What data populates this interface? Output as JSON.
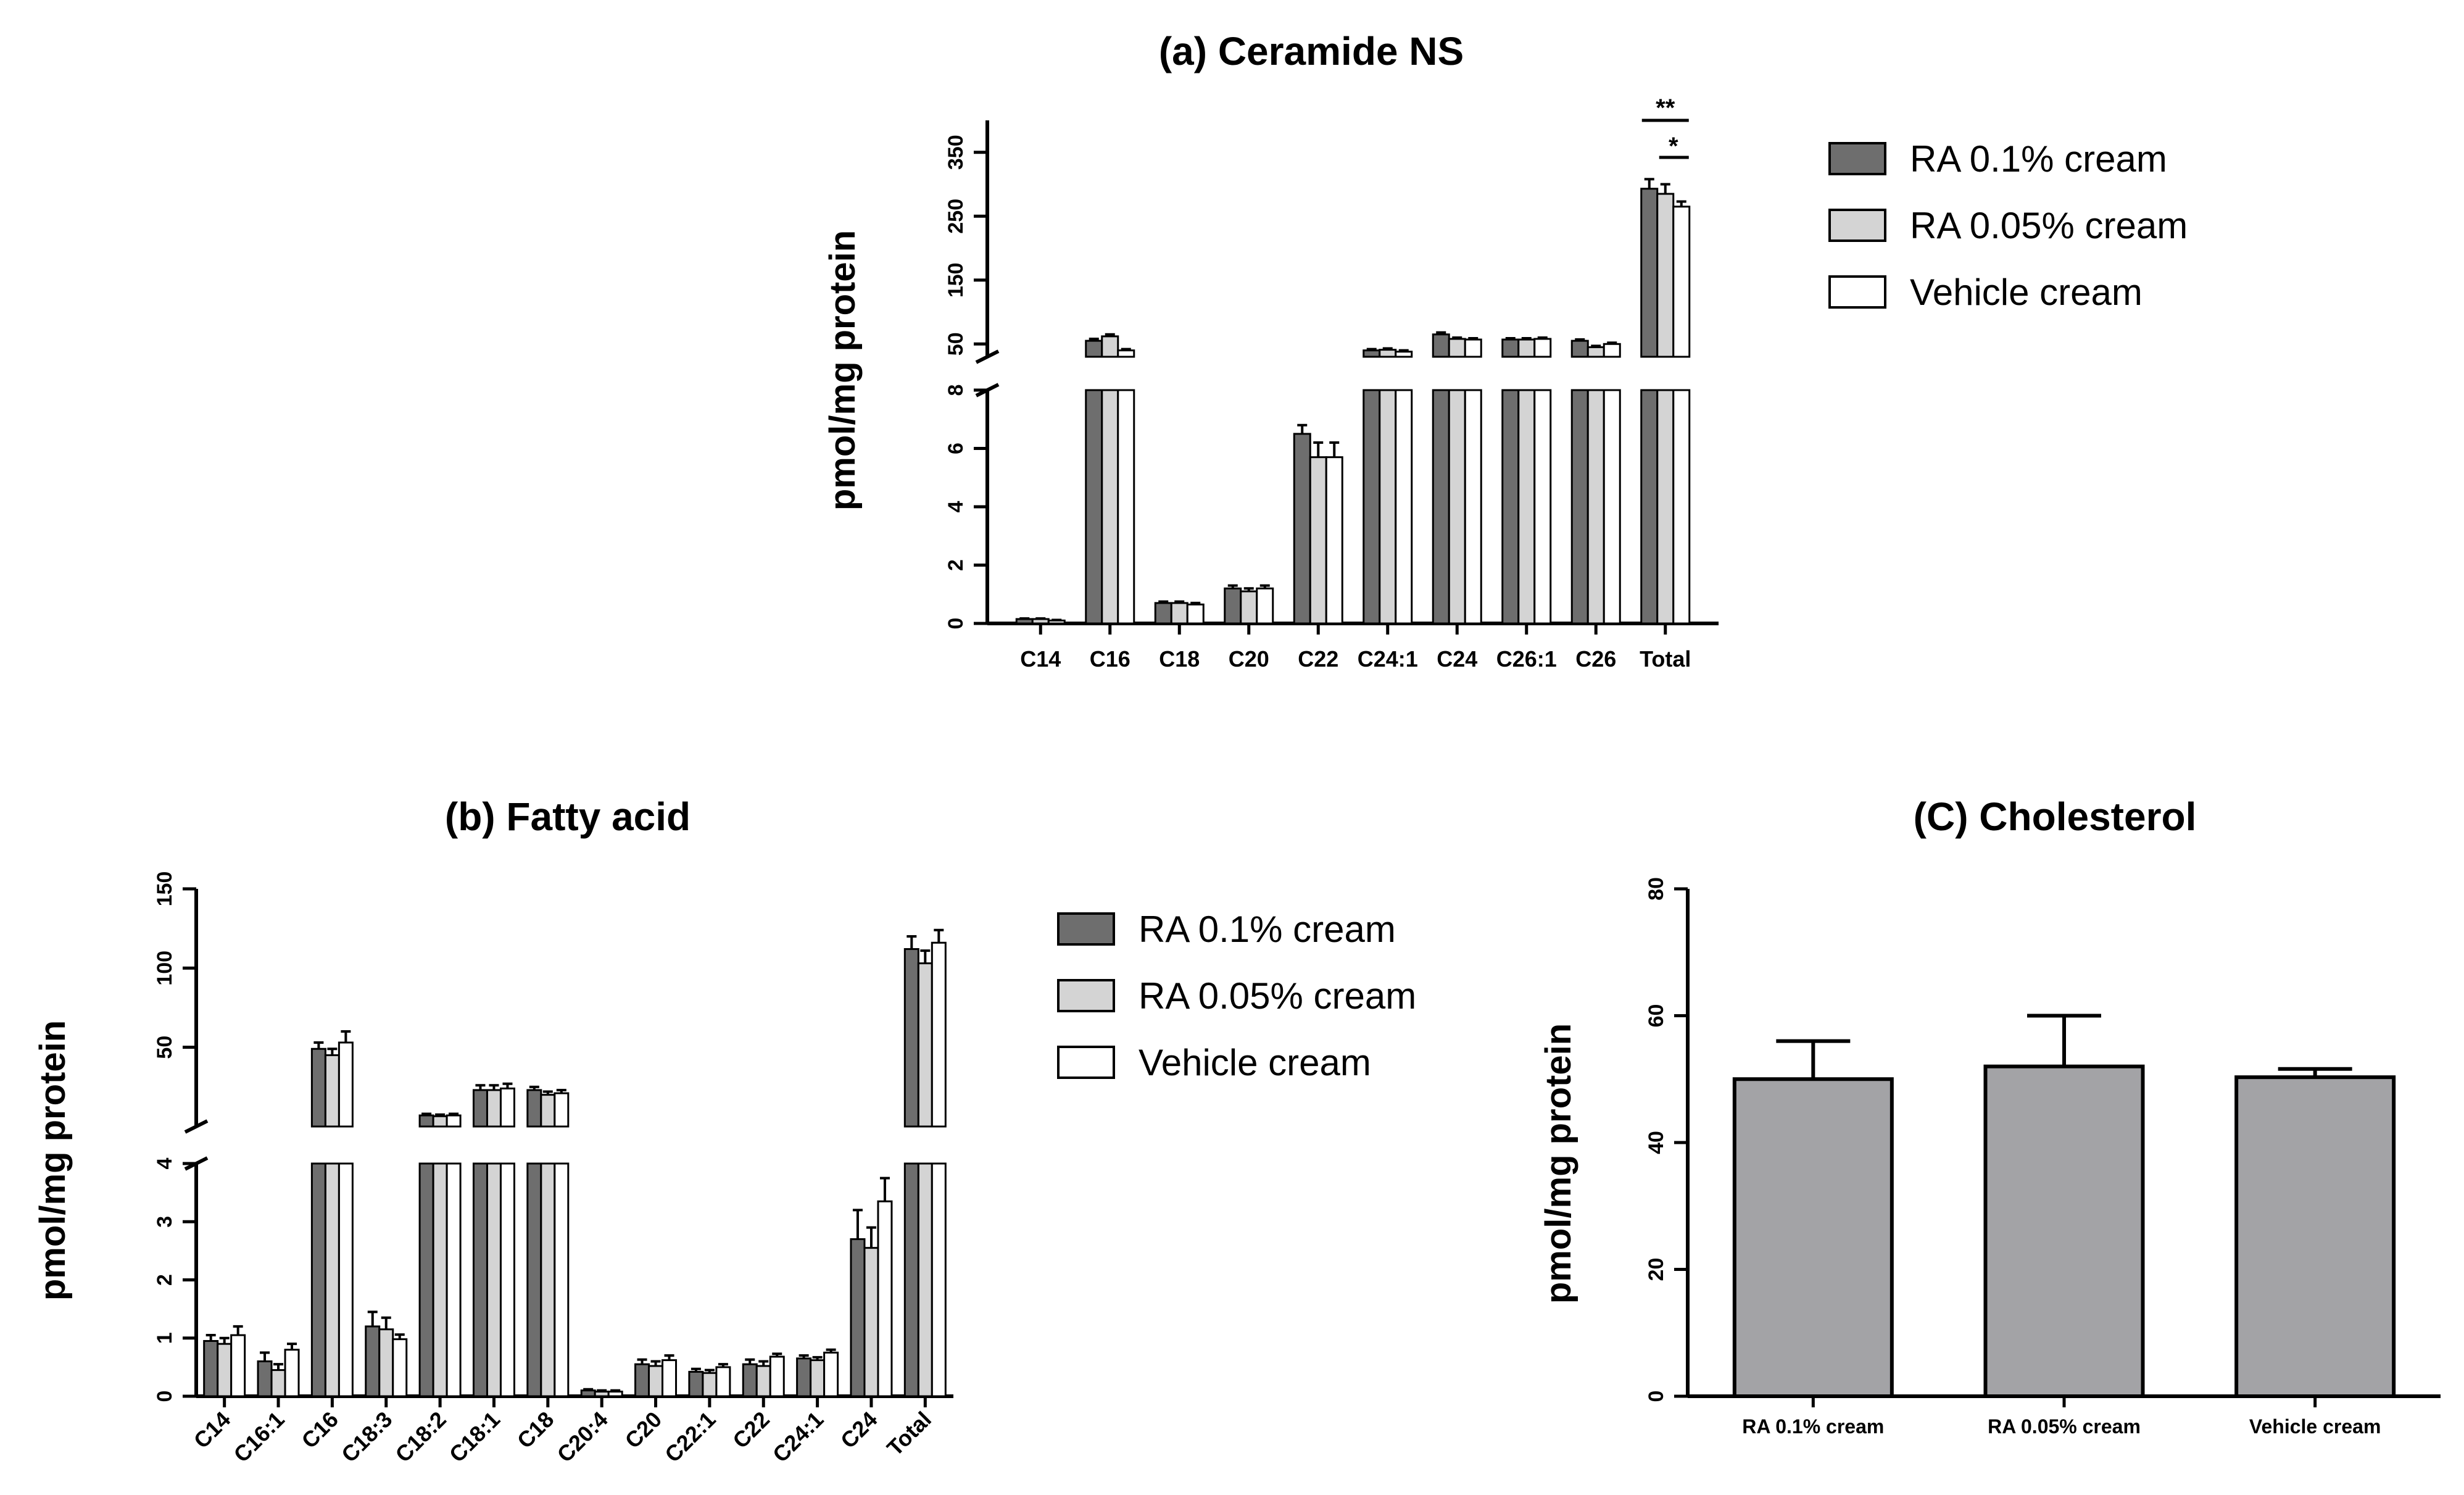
{
  "colors": {
    "RA 0.1% cream": "#6e6e6e",
    "RA 0.05% cream": "#d4d4d4",
    "Vehicle cream": "#ffffff",
    "cholesterol_bar": "#a3a3a6"
  },
  "chart_data": [
    {
      "id": "a",
      "type": "bar",
      "title": "(a) Ceramide NS",
      "ylabel": "pmol/mg protein",
      "xlabel": "",
      "categories": [
        "C14",
        "C16",
        "C18",
        "C20",
        "C22",
        "C24:1",
        "C24",
        "C26:1",
        "C26",
        "Total"
      ],
      "series": [
        {
          "name": "RA 0.1% cream",
          "values": [
            0.15,
            55,
            0.7,
            1.2,
            6.5,
            40,
            65,
            57,
            55,
            293
          ],
          "errors": [
            0.02,
            3,
            0.05,
            0.1,
            0.3,
            2,
            3,
            2,
            2,
            15
          ]
        },
        {
          "name": "RA 0.05% cream",
          "values": [
            0.15,
            62,
            0.7,
            1.1,
            5.7,
            41,
            58,
            57,
            45,
            285
          ],
          "errors": [
            0.02,
            3,
            0.05,
            0.1,
            0.5,
            2,
            2,
            2,
            2,
            15
          ]
        },
        {
          "name": "Vehicle cream",
          "values": [
            0.1,
            40,
            0.65,
            1.2,
            5.7,
            38,
            57,
            58,
            50,
            265
          ],
          "errors": [
            0.02,
            2,
            0.05,
            0.1,
            0.5,
            2,
            2,
            2,
            2,
            8
          ]
        }
      ],
      "y_axis_break": {
        "lower_range": [
          0,
          8
        ],
        "upper_range": [
          30,
          400
        ]
      },
      "yticks_lower": [
        0,
        2,
        4,
        6,
        8
      ],
      "yticks_upper": [
        50,
        150,
        250,
        350
      ],
      "significance": [
        {
          "label": "**",
          "between": [
            "RA 0.1% cream",
            "Vehicle cream"
          ],
          "category": "Total"
        },
        {
          "label": "*",
          "between": [
            "RA 0.05% cream",
            "Vehicle cream"
          ],
          "category": "Total"
        }
      ],
      "legend": {
        "entries": [
          "RA 0.1% cream",
          "RA 0.05% cream",
          "Vehicle cream"
        ],
        "position": "right"
      }
    },
    {
      "id": "b",
      "type": "bar",
      "title": "(b) Fatty acid",
      "ylabel": "pmol/mg protein",
      "xlabel": "",
      "categories": [
        "C14",
        "C16:1",
        "C16",
        "C18:3",
        "C18:2",
        "C18:1",
        "C18",
        "C20:4",
        "C20",
        "C22:1",
        "C22",
        "C24:1",
        "C24",
        "Total"
      ],
      "series": [
        {
          "name": "RA 0.1% cream",
          "values": [
            0.95,
            0.6,
            49,
            1.2,
            7,
            23,
            23,
            0.1,
            0.55,
            0.42,
            0.55,
            0.65,
            2.7,
            112
          ],
          "errors": [
            0.1,
            0.15,
            4,
            0.25,
            1,
            3,
            2,
            0.02,
            0.08,
            0.05,
            0.08,
            0.05,
            0.5,
            8
          ]
        },
        {
          "name": "RA 0.05% cream",
          "values": [
            0.9,
            0.45,
            45,
            1.15,
            6.5,
            23,
            20,
            0.08,
            0.52,
            0.4,
            0.52,
            0.62,
            2.55,
            103
          ],
          "errors": [
            0.1,
            0.1,
            4,
            0.2,
            1,
            3,
            2,
            0.02,
            0.08,
            0.05,
            0.08,
            0.05,
            0.35,
            8
          ]
        },
        {
          "name": "Vehicle cream",
          "values": [
            1.05,
            0.8,
            53,
            0.98,
            7,
            24,
            21,
            0.08,
            0.62,
            0.5,
            0.68,
            0.75,
            3.35,
            116
          ],
          "errors": [
            0.15,
            0.1,
            7,
            0.08,
            1,
            3,
            2,
            0.02,
            0.08,
            0.05,
            0.05,
            0.05,
            0.4,
            8
          ]
        }
      ],
      "y_axis_break": {
        "lower_range": [
          0,
          4
        ],
        "upper_range": [
          0,
          150
        ]
      },
      "yticks_lower": [
        0,
        1,
        2,
        3,
        4
      ],
      "yticks_upper": [
        50,
        100,
        150
      ],
      "legend": {
        "entries": [
          "RA 0.1% cream",
          "RA 0.05% cream",
          "Vehicle cream"
        ],
        "position": "right"
      }
    },
    {
      "id": "c",
      "type": "bar",
      "title": "(C) Cholesterol",
      "ylabel": "pmol/mg protein",
      "xlabel": "",
      "categories": [
        "RA 0.1% cream",
        "RA 0.05% cream",
        "Vehicle cream"
      ],
      "values": [
        50,
        52,
        50.3
      ],
      "errors": [
        6,
        8,
        1.3
      ],
      "ylim": [
        0,
        80
      ],
      "yticks": [
        0,
        20,
        40,
        60,
        80
      ]
    }
  ]
}
